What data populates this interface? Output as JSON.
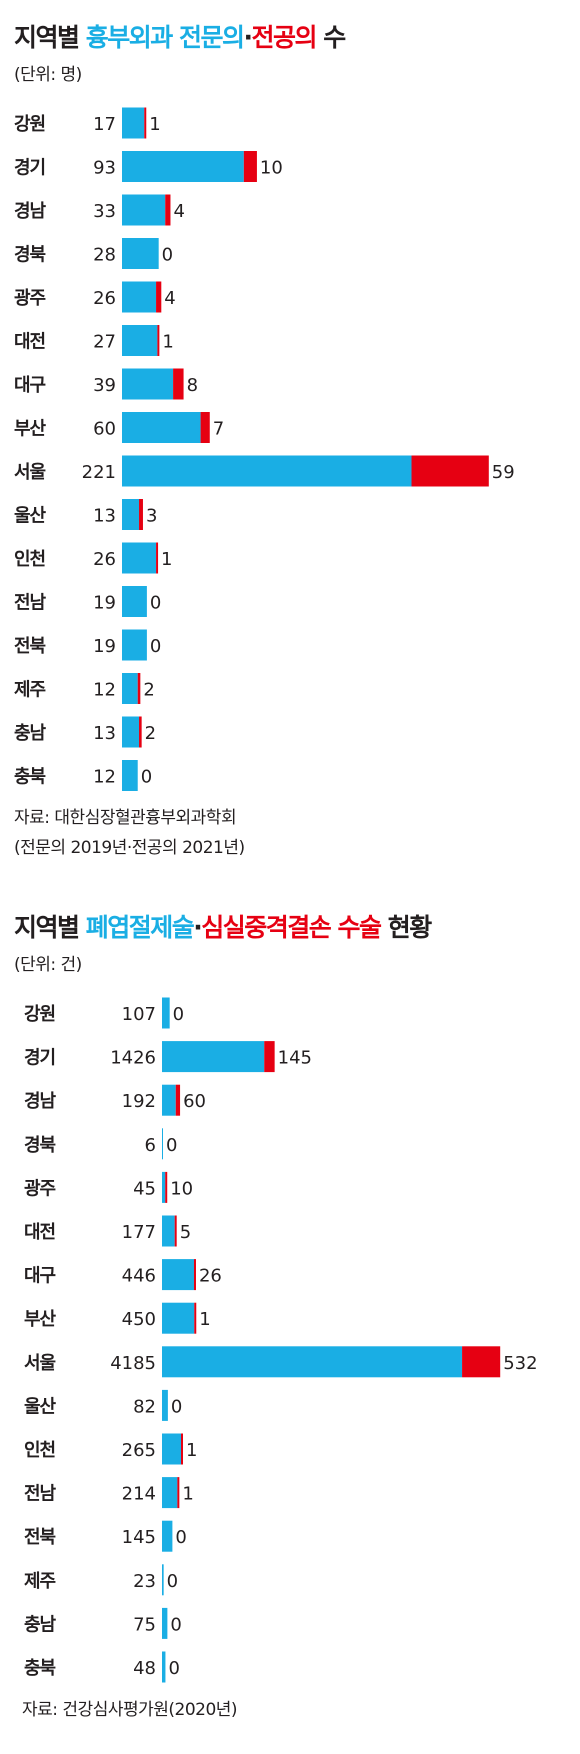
{
  "chart1": {
    "title_prefix": "지역별",
    "title_blue": "흉부외과 전문의",
    "title_sep": "·",
    "title_red": "전공의",
    "title_suffix": "수",
    "unit": "(단위: 명)",
    "source": [
      "자료: 대한심장혈관흉부외과학회",
      "(전문의 2019년·전공의 2021년)"
    ]
  },
  "chart2": {
    "title_prefix": "지역별",
    "title_blue": "폐엽절제술",
    "title_sep": "·",
    "title_red": "심실중격결손 수술",
    "title_suffix": "현황",
    "unit": "(단위: 건)",
    "source": [
      "자료: 건강심사평가원(2020년)"
    ]
  },
  "colors": {
    "series_a": "#1aaee4",
    "series_b": "#e60012",
    "text": "#231f20"
  },
  "chart_data": [
    {
      "type": "bar",
      "orientation": "horizontal",
      "stacked": true,
      "title": "지역별 흉부외과 전문의·전공의 수",
      "unit": "(단위: 명)",
      "categories": [
        "강원",
        "경기",
        "경남",
        "경북",
        "광주",
        "대전",
        "대구",
        "부산",
        "서울",
        "울산",
        "인천",
        "전남",
        "전북",
        "제주",
        "충남",
        "충북"
      ],
      "series": [
        {
          "name": "전문의",
          "color": "#1aaee4",
          "values": [
            17,
            93,
            33,
            28,
            26,
            27,
            39,
            60,
            221,
            13,
            26,
            19,
            19,
            12,
            13,
            12
          ]
        },
        {
          "name": "전공의",
          "color": "#e60012",
          "values": [
            1,
            10,
            4,
            0,
            4,
            1,
            8,
            7,
            59,
            3,
            1,
            0,
            0,
            2,
            2,
            0
          ]
        }
      ],
      "grid": false,
      "legend": "title"
    },
    {
      "type": "bar",
      "orientation": "horizontal",
      "stacked": true,
      "title": "지역별 폐엽절제술·심실중격결손 수술 현황",
      "unit": "(단위: 건)",
      "categories": [
        "강원",
        "경기",
        "경남",
        "경북",
        "광주",
        "대전",
        "대구",
        "부산",
        "서울",
        "울산",
        "인천",
        "전남",
        "전북",
        "제주",
        "충남",
        "충북"
      ],
      "series": [
        {
          "name": "폐엽절제술",
          "color": "#1aaee4",
          "values": [
            107,
            1426,
            192,
            6,
            45,
            177,
            446,
            450,
            4185,
            82,
            265,
            214,
            145,
            23,
            75,
            48
          ]
        },
        {
          "name": "심실중격결손 수술",
          "color": "#e60012",
          "values": [
            0,
            145,
            60,
            0,
            10,
            5,
            26,
            1,
            532,
            0,
            1,
            1,
            0,
            0,
            0,
            0
          ]
        }
      ],
      "grid": false,
      "legend": "title"
    }
  ]
}
